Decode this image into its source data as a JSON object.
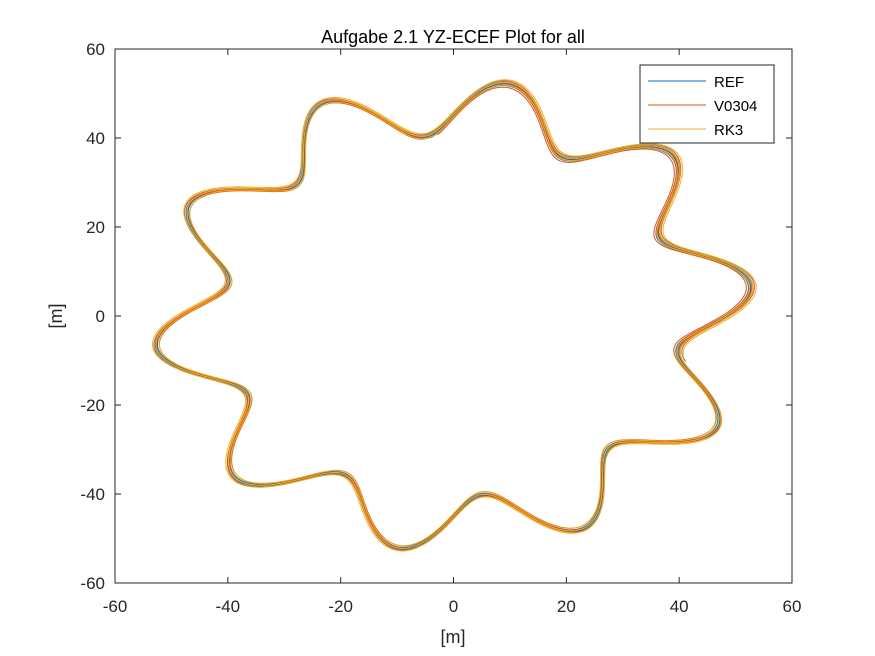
{
  "chart_data": {
    "type": "line",
    "title": "Aufgabe 2.1 YZ-ECEF Plot for all",
    "xlabel": "[m]",
    "ylabel": "[m]",
    "xlim": [
      -60,
      60
    ],
    "ylim": [
      -60,
      60
    ],
    "xticks": [
      -60,
      -40,
      -20,
      0,
      20,
      40,
      60
    ],
    "yticks": [
      -60,
      -40,
      -20,
      0,
      20,
      40,
      60
    ],
    "x_tick_labels": [
      "-60",
      "-40",
      "-20",
      "0",
      "20",
      "40",
      "60"
    ],
    "y_tick_labels": [
      "-60",
      "-40",
      "-20",
      "0",
      "20",
      "40",
      "60"
    ],
    "grid": false,
    "legend_position": "top-right",
    "description": "Wavy closed orbits with 10 lobes; radius approx 47 m with amplitude approx 6 m; slight spiral drift over multiple revolutions",
    "series": [
      {
        "name": "REF",
        "color": "#0072BD",
        "base_radius": 47.2,
        "amplitude": 6.3,
        "lobes": 10,
        "phase_deg": 15,
        "turns": 2.3,
        "drift": -0.9,
        "start_deg": -12
      },
      {
        "name": "V0304",
        "color": "#D95319",
        "base_radius": 47.5,
        "amplitude": 6.3,
        "lobes": 10,
        "phase_deg": 14,
        "turns": 3.3,
        "drift": -1.6,
        "start_deg": -14
      },
      {
        "name": "RK3",
        "color": "#EDB120",
        "base_radius": 47.8,
        "amplitude": 6.3,
        "lobes": 10,
        "phase_deg": 16,
        "turns": 3.0,
        "drift": -1.8,
        "start_deg": -12
      }
    ]
  }
}
